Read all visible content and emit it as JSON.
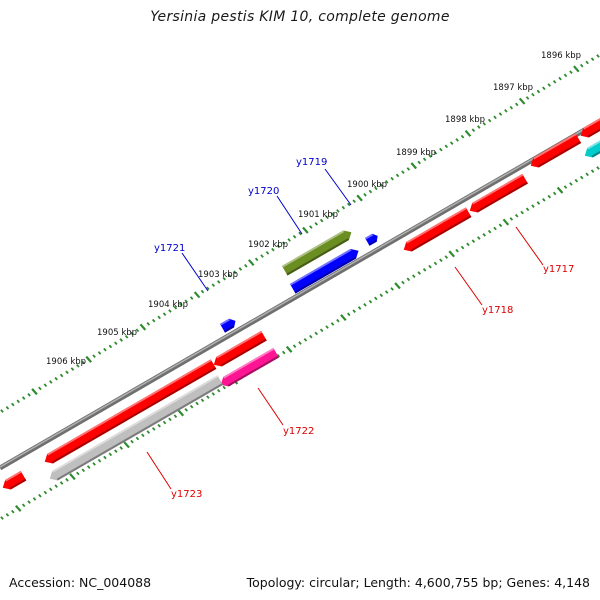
{
  "title": "Yersinia pestis KIM 10, complete genome",
  "footer": {
    "accession": "Accession: NC_004088",
    "summary": "Topology: circular; Length: 4,600,755 bp; Genes: 4,148"
  },
  "colors": {
    "backbone": "#808080",
    "ticks": "#2e8b2e",
    "forward_label": "#0000cc",
    "reverse_label": "#dd0000",
    "red_gene": "#ff0000",
    "blue_gene": "#0000ff",
    "olive_gene": "#6b8e23",
    "pink_gene": "#ff1493",
    "gray_gene": "#bfbfbf",
    "cyan_gene": "#00cccc"
  },
  "scale": {
    "unit": "kbp",
    "labels": [
      "1896 kbp",
      "1897 kbp",
      "1898 kbp",
      "1899 kbp",
      "1900 kbp",
      "1901 kbp",
      "1902 kbp",
      "1903 kbp",
      "1904 kbp",
      "1905 kbp",
      "1906 kbp"
    ]
  },
  "gene_labels": [
    {
      "text": "y1719",
      "strand": "forward"
    },
    {
      "text": "y1720",
      "strand": "forward"
    },
    {
      "text": "y1721",
      "strand": "forward"
    },
    {
      "text": "y1717",
      "strand": "reverse"
    },
    {
      "text": "y1718",
      "strand": "reverse"
    },
    {
      "text": "y1722",
      "strand": "reverse"
    },
    {
      "text": "y1723",
      "strand": "reverse"
    }
  ]
}
